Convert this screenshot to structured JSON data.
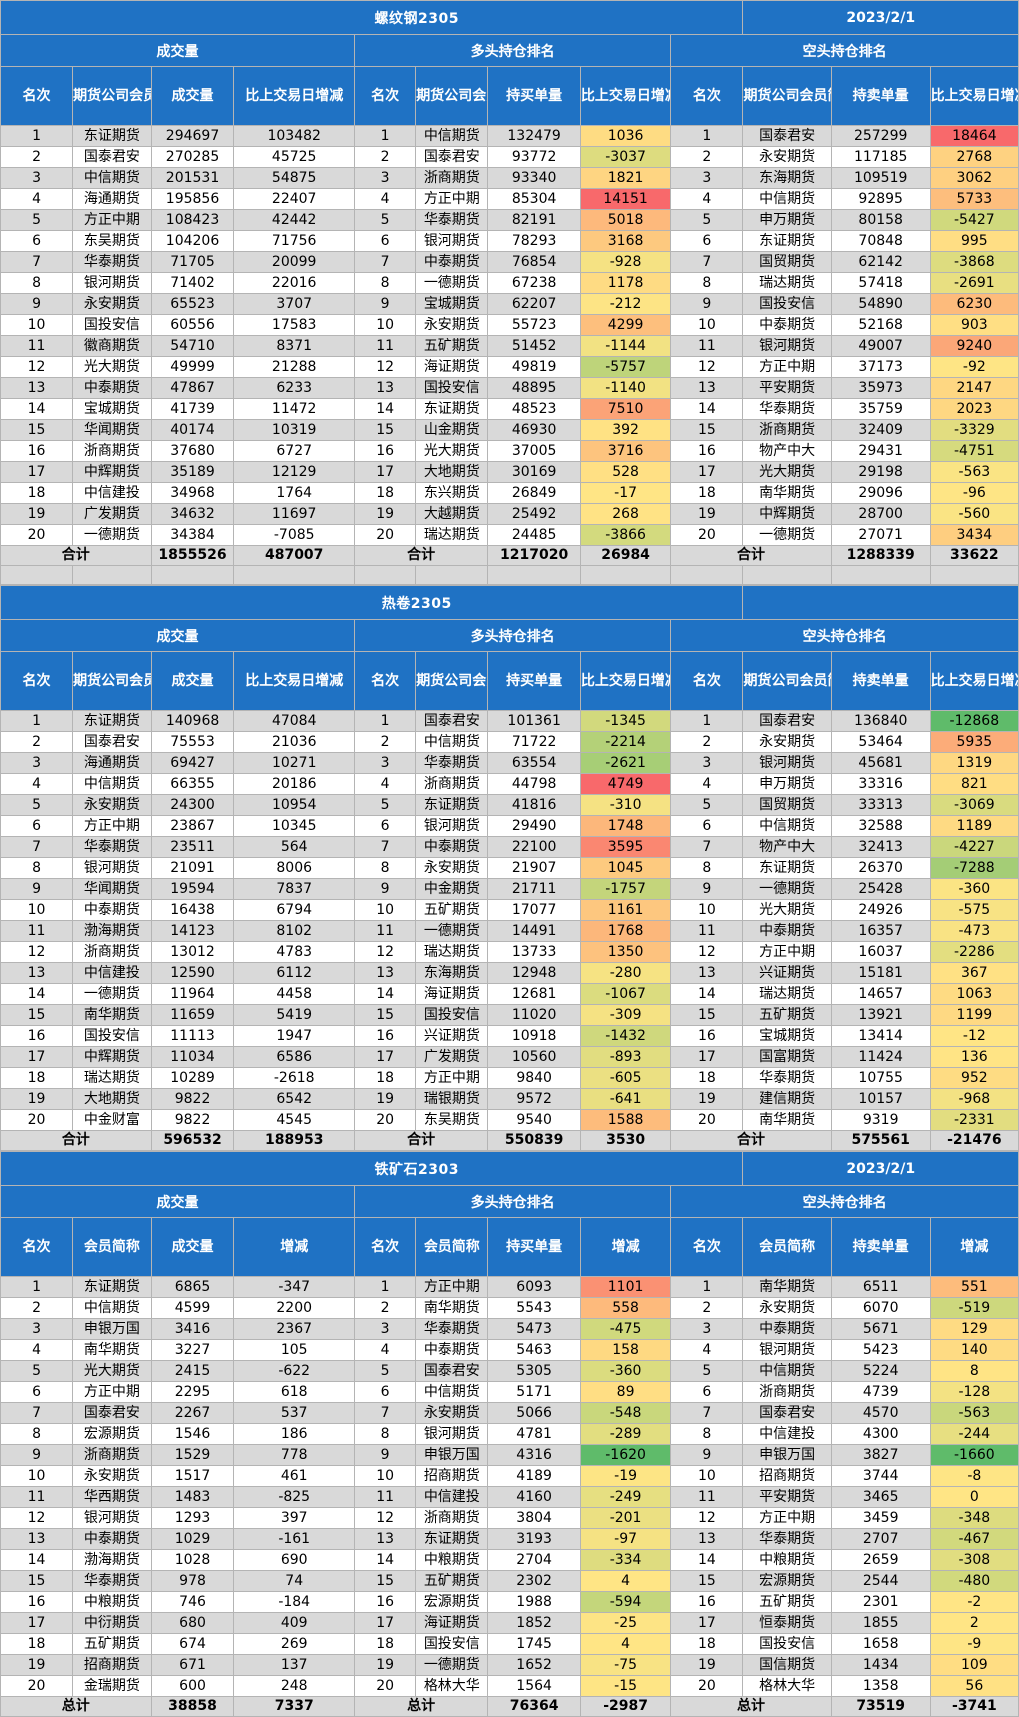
{
  "sections": [
    {
      "title": "螺纹钢2305",
      "date": "2023/2/1",
      "groups": {
        "volume": "成交量",
        "long": "多头持仓排名",
        "short": "空头持仓排名"
      },
      "headers": [
        "名次",
        "期货公司会员简称",
        "成交量",
        "比上交易日增减",
        "名次",
        "期货公司会员简称",
        "持买单量",
        "比上交易日增减",
        "名次",
        "期货公司会员简称",
        "持卖单量",
        "比上交易日增减/变化"
      ],
      "rows": [
        [
          1,
          "东证期货",
          294697,
          103482,
          1,
          "中信期货",
          132479,
          1036,
          1,
          "国泰君安",
          257299,
          18464
        ],
        [
          2,
          "国泰君安",
          270285,
          45725,
          2,
          "国泰君安",
          93772,
          -3037,
          2,
          "永安期货",
          117185,
          2768
        ],
        [
          3,
          "中信期货",
          201531,
          54875,
          3,
          "浙商期货",
          93340,
          1821,
          3,
          "东海期货",
          109519,
          3062
        ],
        [
          4,
          "海通期货",
          195856,
          22407,
          4,
          "方正中期",
          85304,
          14151,
          4,
          "中信期货",
          92895,
          5733
        ],
        [
          5,
          "方正中期",
          108423,
          42442,
          5,
          "华泰期货",
          82191,
          5018,
          5,
          "申万期货",
          80158,
          -5427
        ],
        [
          6,
          "东吴期货",
          104206,
          71756,
          6,
          "银河期货",
          78293,
          3168,
          6,
          "东证期货",
          70848,
          995
        ],
        [
          7,
          "华泰期货",
          71705,
          20099,
          7,
          "中泰期货",
          76854,
          -928,
          7,
          "国贸期货",
          62142,
          -3868
        ],
        [
          8,
          "银河期货",
          71402,
          22016,
          8,
          "一德期货",
          67238,
          1178,
          8,
          "瑞达期货",
          57418,
          -2691
        ],
        [
          9,
          "永安期货",
          65523,
          3707,
          9,
          "宝城期货",
          62207,
          -212,
          9,
          "国投安信",
          54890,
          6230
        ],
        [
          10,
          "国投安信",
          60556,
          17583,
          10,
          "永安期货",
          55723,
          4299,
          10,
          "中泰期货",
          52168,
          903
        ],
        [
          11,
          "徽商期货",
          54710,
          8371,
          11,
          "五矿期货",
          51452,
          -1144,
          11,
          "银河期货",
          49007,
          9240
        ],
        [
          12,
          "光大期货",
          49999,
          21288,
          12,
          "海证期货",
          49819,
          -5757,
          12,
          "方正中期",
          37173,
          -92
        ],
        [
          13,
          "中泰期货",
          47867,
          6233,
          13,
          "国投安信",
          48895,
          -1140,
          13,
          "平安期货",
          35973,
          2147
        ],
        [
          14,
          "宝城期货",
          41739,
          11472,
          14,
          "东证期货",
          48523,
          7510,
          14,
          "华泰期货",
          35759,
          2023
        ],
        [
          15,
          "华闻期货",
          40174,
          10319,
          15,
          "山金期货",
          46930,
          392,
          15,
          "浙商期货",
          32409,
          -3329
        ],
        [
          16,
          "浙商期货",
          37680,
          6727,
          16,
          "光大期货",
          37005,
          3716,
          16,
          "物产中大",
          29431,
          -4751
        ],
        [
          17,
          "中辉期货",
          35189,
          12129,
          17,
          "大地期货",
          30169,
          528,
          17,
          "光大期货",
          29198,
          -563
        ],
        [
          18,
          "中信建投",
          34968,
          1764,
          18,
          "东兴期货",
          26849,
          -17,
          18,
          "南华期货",
          29096,
          -96
        ],
        [
          19,
          "广发期货",
          34632,
          11697,
          19,
          "大越期货",
          25492,
          268,
          19,
          "中辉期货",
          28700,
          -560
        ],
        [
          20,
          "一德期货",
          34384,
          -7085,
          20,
          "瑞达期货",
          24485,
          -3866,
          20,
          "一德期货",
          27071,
          3434
        ]
      ],
      "total": [
        "合计",
        1855526,
        487007,
        "合计",
        1217020,
        26984,
        "合计",
        1288339,
        33622
      ]
    },
    {
      "title": "热卷2305",
      "date": "",
      "groups": {
        "volume": "成交量",
        "long": "多头持仓排名",
        "short": "空头持仓排名"
      },
      "headers": [
        "名次",
        "期货公司会员简称",
        "成交量",
        "比上交易日增减",
        "名次",
        "期货公司会员简称",
        "持买单量",
        "比上交易日增减",
        "名次",
        "期货公司会员简称",
        "持卖单量",
        "比上交易日增减/变化"
      ],
      "rows": [
        [
          1,
          "东证期货",
          140968,
          47084,
          1,
          "国泰君安",
          101361,
          -1345,
          1,
          "国泰君安",
          136840,
          -12868
        ],
        [
          2,
          "国泰君安",
          75553,
          21036,
          2,
          "中信期货",
          71722,
          -2214,
          2,
          "永安期货",
          53464,
          5935
        ],
        [
          3,
          "海通期货",
          69427,
          10271,
          3,
          "华泰期货",
          63554,
          -2621,
          3,
          "银河期货",
          45681,
          1319
        ],
        [
          4,
          "中信期货",
          66355,
          20186,
          4,
          "浙商期货",
          44798,
          4749,
          4,
          "申万期货",
          33316,
          821
        ],
        [
          5,
          "永安期货",
          24300,
          10954,
          5,
          "东证期货",
          41816,
          -310,
          5,
          "国贸期货",
          33313,
          -3069
        ],
        [
          6,
          "方正中期",
          23867,
          10345,
          6,
          "银河期货",
          29490,
          1748,
          6,
          "中信期货",
          32588,
          1189
        ],
        [
          7,
          "华泰期货",
          23511,
          564,
          7,
          "中泰期货",
          22100,
          3595,
          7,
          "物产中大",
          32413,
          -4227
        ],
        [
          8,
          "银河期货",
          21091,
          8006,
          8,
          "永安期货",
          21907,
          1045,
          8,
          "东证期货",
          26370,
          -7288
        ],
        [
          9,
          "华闻期货",
          19594,
          7837,
          9,
          "中金期货",
          21711,
          -1757,
          9,
          "一德期货",
          25428,
          -360
        ],
        [
          10,
          "中泰期货",
          16438,
          6794,
          10,
          "五矿期货",
          17077,
          1161,
          10,
          "光大期货",
          24926,
          -575
        ],
        [
          11,
          "渤海期货",
          14123,
          8102,
          11,
          "一德期货",
          14491,
          1768,
          11,
          "中泰期货",
          16357,
          -473
        ],
        [
          12,
          "浙商期货",
          13012,
          4783,
          12,
          "瑞达期货",
          13733,
          1350,
          12,
          "方正中期",
          16037,
          -2286
        ],
        [
          13,
          "中信建投",
          12590,
          6112,
          13,
          "东海期货",
          12948,
          -280,
          13,
          "兴证期货",
          15181,
          367
        ],
        [
          14,
          "一德期货",
          11964,
          4458,
          14,
          "海证期货",
          12681,
          -1067,
          14,
          "瑞达期货",
          14657,
          1063
        ],
        [
          15,
          "南华期货",
          11659,
          5419,
          15,
          "国投安信",
          11020,
          -309,
          15,
          "五矿期货",
          13921,
          1199
        ],
        [
          16,
          "国投安信",
          11113,
          1947,
          16,
          "兴证期货",
          10918,
          -1432,
          16,
          "宝城期货",
          13414,
          -12
        ],
        [
          17,
          "中辉期货",
          11034,
          6586,
          17,
          "广发期货",
          10560,
          -893,
          17,
          "国富期货",
          11424,
          136
        ],
        [
          18,
          "瑞达期货",
          10289,
          -2618,
          18,
          "方正中期",
          9840,
          -605,
          18,
          "华泰期货",
          10755,
          952
        ],
        [
          19,
          "大地期货",
          9822,
          6542,
          19,
          "瑞银期货",
          9572,
          -641,
          19,
          "建信期货",
          10157,
          -968
        ],
        [
          20,
          "中金财富",
          9822,
          4545,
          20,
          "东吴期货",
          9540,
          1588,
          20,
          "南华期货",
          9319,
          -2331
        ]
      ],
      "total": [
        "合计",
        596532,
        188953,
        "合计",
        550839,
        3530,
        "合计",
        575561,
        -21476
      ]
    },
    {
      "title": "铁矿石2303",
      "date": "2023/2/1",
      "groups": {
        "volume": "成交量",
        "long": "多头持仓排名",
        "short": "空头持仓排名"
      },
      "headers": [
        "名次",
        "会员简称",
        "成交量",
        "增减",
        "名次",
        "会员简称",
        "持买单量",
        "增减",
        "名次",
        "会员简称",
        "持卖单量",
        "增减"
      ],
      "rows": [
        [
          1,
          "东证期货",
          6865,
          -347,
          1,
          "方正中期",
          6093,
          1101,
          1,
          "南华期货",
          6511,
          551
        ],
        [
          2,
          "中信期货",
          4599,
          2200,
          2,
          "南华期货",
          5543,
          558,
          2,
          "永安期货",
          6070,
          -519
        ],
        [
          3,
          "申银万国",
          3416,
          2367,
          3,
          "华泰期货",
          5473,
          -475,
          3,
          "中泰期货",
          5671,
          129
        ],
        [
          4,
          "南华期货",
          3227,
          105,
          4,
          "中泰期货",
          5463,
          158,
          4,
          "银河期货",
          5423,
          140
        ],
        [
          5,
          "光大期货",
          2415,
          -622,
          5,
          "国泰君安",
          5305,
          -360,
          5,
          "中信期货",
          5224,
          8
        ],
        [
          6,
          "方正中期",
          2295,
          618,
          6,
          "中信期货",
          5171,
          89,
          6,
          "浙商期货",
          4739,
          -128
        ],
        [
          7,
          "国泰君安",
          2267,
          537,
          7,
          "永安期货",
          5066,
          -548,
          7,
          "国泰君安",
          4570,
          -563
        ],
        [
          8,
          "宏源期货",
          1546,
          186,
          8,
          "银河期货",
          4781,
          -289,
          8,
          "中信建投",
          4300,
          -244
        ],
        [
          9,
          "浙商期货",
          1529,
          778,
          9,
          "申银万国",
          4316,
          -1620,
          9,
          "申银万国",
          3827,
          -1660
        ],
        [
          10,
          "永安期货",
          1517,
          461,
          10,
          "招商期货",
          4189,
          -19,
          10,
          "招商期货",
          3744,
          -8
        ],
        [
          11,
          "华西期货",
          1483,
          -825,
          11,
          "中信建投",
          4160,
          -249,
          11,
          "平安期货",
          3465,
          0
        ],
        [
          12,
          "银河期货",
          1293,
          397,
          12,
          "浙商期货",
          3804,
          -201,
          12,
          "方正中期",
          3459,
          -348
        ],
        [
          13,
          "中泰期货",
          1029,
          -161,
          13,
          "东证期货",
          3193,
          -97,
          13,
          "华泰期货",
          2707,
          -467
        ],
        [
          14,
          "渤海期货",
          1028,
          690,
          14,
          "中粮期货",
          2704,
          -334,
          14,
          "中粮期货",
          2659,
          -308
        ],
        [
          15,
          "华泰期货",
          978,
          74,
          15,
          "五矿期货",
          2302,
          4,
          15,
          "宏源期货",
          2544,
          -480
        ],
        [
          16,
          "中粮期货",
          746,
          -184,
          16,
          "宏源期货",
          1988,
          -594,
          16,
          "五矿期货",
          2301,
          -2
        ],
        [
          17,
          "中衍期货",
          680,
          409,
          17,
          "海证期货",
          1852,
          -25,
          17,
          "恒泰期货",
          1855,
          2
        ],
        [
          18,
          "五矿期货",
          674,
          269,
          18,
          "国投安信",
          1745,
          4,
          18,
          "国投安信",
          1658,
          -9
        ],
        [
          19,
          "招商期货",
          671,
          137,
          19,
          "一德期货",
          1652,
          -75,
          19,
          "国信期货",
          1434,
          109
        ],
        [
          20,
          "金瑞期货",
          600,
          248,
          20,
          "格林大华",
          1564,
          -15,
          20,
          "格林大华",
          1358,
          56
        ]
      ],
      "total": [
        "总计",
        38858,
        7337,
        "总计",
        76364,
        -2987,
        "总计",
        73519,
        -3741
      ]
    }
  ],
  "colors": {
    "header_blue": "#1f72c4",
    "row_gray": "#d9d9d9",
    "row_white": "#ffffff",
    "heat_negative": "#5fbb6a",
    "heat_zero": "#ffe585",
    "heat_positive": "#f8696b"
  }
}
